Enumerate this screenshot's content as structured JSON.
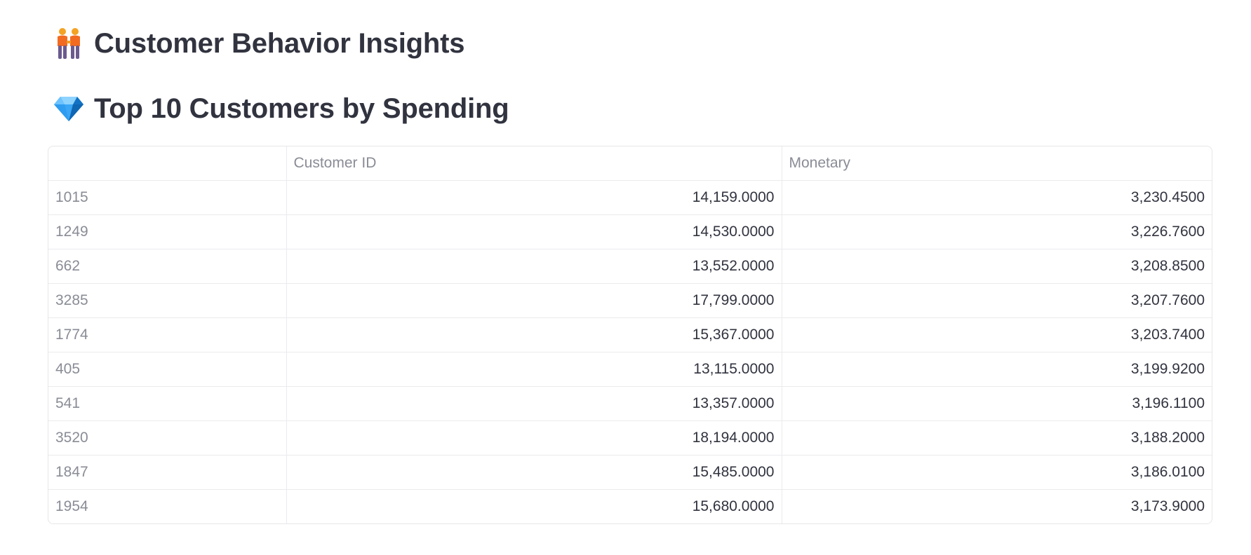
{
  "headings": {
    "insights": {
      "icon": "people-holding-hands-icon",
      "text": "Customer Behavior Insights"
    },
    "top_customers": {
      "icon": "gem-icon",
      "text": "Top 10 Customers by Spending"
    }
  },
  "table": {
    "columns": [
      "",
      "Customer ID",
      "Monetary"
    ],
    "rows": [
      {
        "index": "1015",
        "customer_id": "14,159.0000",
        "monetary": "3,230.4500"
      },
      {
        "index": "1249",
        "customer_id": "14,530.0000",
        "monetary": "3,226.7600"
      },
      {
        "index": "662",
        "customer_id": "13,552.0000",
        "monetary": "3,208.8500"
      },
      {
        "index": "3285",
        "customer_id": "17,799.0000",
        "monetary": "3,207.7600"
      },
      {
        "index": "1774",
        "customer_id": "15,367.0000",
        "monetary": "3,203.7400"
      },
      {
        "index": "405",
        "customer_id": "13,115.0000",
        "monetary": "3,199.9200"
      },
      {
        "index": "541",
        "customer_id": "13,357.0000",
        "monetary": "3,196.1100"
      },
      {
        "index": "3520",
        "customer_id": "18,194.0000",
        "monetary": "3,188.2000"
      },
      {
        "index": "1847",
        "customer_id": "15,485.0000",
        "monetary": "3,186.0100"
      },
      {
        "index": "1954",
        "customer_id": "15,680.0000",
        "monetary": "3,173.9000"
      }
    ]
  },
  "colors": {
    "text": "#31333f",
    "muted": "#8a8c96",
    "border": "#e6e6ea"
  }
}
